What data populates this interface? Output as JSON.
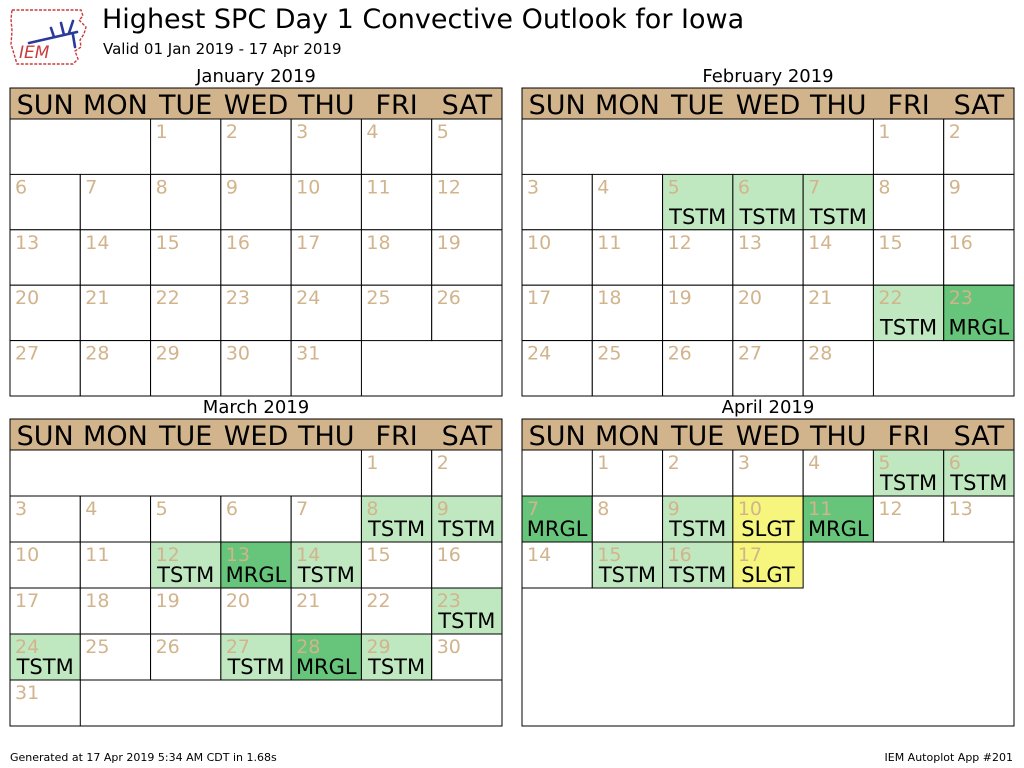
{
  "header": {
    "title": "Highest SPC Day 1 Convective Outlook for Iowa",
    "subtitle": "Valid 01 Jan 2019 - 17 Apr 2019"
  },
  "logo": {
    "text": "IEM",
    "icon": "iowa-state-outline-logo"
  },
  "footer": {
    "left": "Generated at 17 Apr 2019 5:34 AM CDT in 1.68s",
    "right": "IEM Autoplot App #201"
  },
  "weekdays": [
    "SUN",
    "MON",
    "TUE",
    "WED",
    "THU",
    "FRI",
    "SAT"
  ],
  "colors": {
    "header_bg": "#d2b48c",
    "day_number": "#d2b48c",
    "TSTM": "#c0e8c0",
    "MRGL": "#66c57a",
    "SLGT": "#f6f67f"
  },
  "chart_data": {
    "type": "table",
    "title": "Highest SPC Day 1 Convective Outlook for Iowa",
    "subtitle": "Valid 01 Jan 2019 - 17 Apr 2019",
    "categories": [
      "TSTM",
      "MRGL",
      "SLGT"
    ],
    "months": [
      {
        "label": "January 2019",
        "weeks": [
          [
            null,
            null,
            {
              "d": 1
            },
            {
              "d": 2
            },
            {
              "d": 3
            },
            {
              "d": 4
            },
            {
              "d": 5
            }
          ],
          [
            {
              "d": 6
            },
            {
              "d": 7
            },
            {
              "d": 8
            },
            {
              "d": 9
            },
            {
              "d": 10
            },
            {
              "d": 11
            },
            {
              "d": 12
            }
          ],
          [
            {
              "d": 13
            },
            {
              "d": 14
            },
            {
              "d": 15
            },
            {
              "d": 16
            },
            {
              "d": 17
            },
            {
              "d": 18
            },
            {
              "d": 19
            }
          ],
          [
            {
              "d": 20
            },
            {
              "d": 21
            },
            {
              "d": 22
            },
            {
              "d": 23
            },
            {
              "d": 24
            },
            {
              "d": 25
            },
            {
              "d": 26
            }
          ],
          [
            {
              "d": 27
            },
            {
              "d": 28
            },
            {
              "d": 29
            },
            {
              "d": 30
            },
            {
              "d": 31
            },
            null,
            null
          ]
        ]
      },
      {
        "label": "February 2019",
        "weeks": [
          [
            null,
            null,
            null,
            null,
            null,
            {
              "d": 1
            },
            {
              "d": 2
            }
          ],
          [
            {
              "d": 3
            },
            {
              "d": 4
            },
            {
              "d": 5,
              "c": "TSTM"
            },
            {
              "d": 6,
              "c": "TSTM"
            },
            {
              "d": 7,
              "c": "TSTM"
            },
            {
              "d": 8
            },
            {
              "d": 9
            }
          ],
          [
            {
              "d": 10
            },
            {
              "d": 11
            },
            {
              "d": 12
            },
            {
              "d": 13
            },
            {
              "d": 14
            },
            {
              "d": 15
            },
            {
              "d": 16
            }
          ],
          [
            {
              "d": 17
            },
            {
              "d": 18
            },
            {
              "d": 19
            },
            {
              "d": 20
            },
            {
              "d": 21
            },
            {
              "d": 22,
              "c": "TSTM"
            },
            {
              "d": 23,
              "c": "MRGL"
            }
          ],
          [
            {
              "d": 24
            },
            {
              "d": 25
            },
            {
              "d": 26
            },
            {
              "d": 27
            },
            {
              "d": 28
            },
            null,
            null
          ]
        ]
      },
      {
        "label": "March 2019",
        "weeks": [
          [
            null,
            null,
            null,
            null,
            null,
            {
              "d": 1
            },
            {
              "d": 2
            }
          ],
          [
            {
              "d": 3
            },
            {
              "d": 4
            },
            {
              "d": 5
            },
            {
              "d": 6
            },
            {
              "d": 7
            },
            {
              "d": 8,
              "c": "TSTM"
            },
            {
              "d": 9,
              "c": "TSTM"
            }
          ],
          [
            {
              "d": 10
            },
            {
              "d": 11
            },
            {
              "d": 12,
              "c": "TSTM"
            },
            {
              "d": 13,
              "c": "MRGL"
            },
            {
              "d": 14,
              "c": "TSTM"
            },
            {
              "d": 15
            },
            {
              "d": 16
            }
          ],
          [
            {
              "d": 17
            },
            {
              "d": 18
            },
            {
              "d": 19
            },
            {
              "d": 20
            },
            {
              "d": 21
            },
            {
              "d": 22
            },
            {
              "d": 23,
              "c": "TSTM"
            }
          ],
          [
            {
              "d": 24,
              "c": "TSTM"
            },
            {
              "d": 25
            },
            {
              "d": 26
            },
            {
              "d": 27,
              "c": "TSTM"
            },
            {
              "d": 28,
              "c": "MRGL"
            },
            {
              "d": 29,
              "c": "TSTM"
            },
            {
              "d": 30
            }
          ],
          [
            {
              "d": 31
            },
            null,
            null,
            null,
            null,
            null,
            null
          ]
        ]
      },
      {
        "label": "April 2019",
        "weeks": [
          [
            null,
            {
              "d": 1
            },
            {
              "d": 2
            },
            {
              "d": 3
            },
            {
              "d": 4
            },
            {
              "d": 5,
              "c": "TSTM"
            },
            {
              "d": 6,
              "c": "TSTM"
            }
          ],
          [
            {
              "d": 7,
              "c": "MRGL"
            },
            {
              "d": 8
            },
            {
              "d": 9,
              "c": "TSTM"
            },
            {
              "d": 10,
              "c": "SLGT"
            },
            {
              "d": 11,
              "c": "MRGL"
            },
            {
              "d": 12
            },
            {
              "d": 13
            }
          ],
          [
            {
              "d": 14
            },
            {
              "d": 15,
              "c": "TSTM"
            },
            {
              "d": 16,
              "c": "TSTM"
            },
            {
              "d": 17,
              "c": "SLGT"
            },
            null,
            null,
            null
          ]
        ]
      }
    ]
  }
}
